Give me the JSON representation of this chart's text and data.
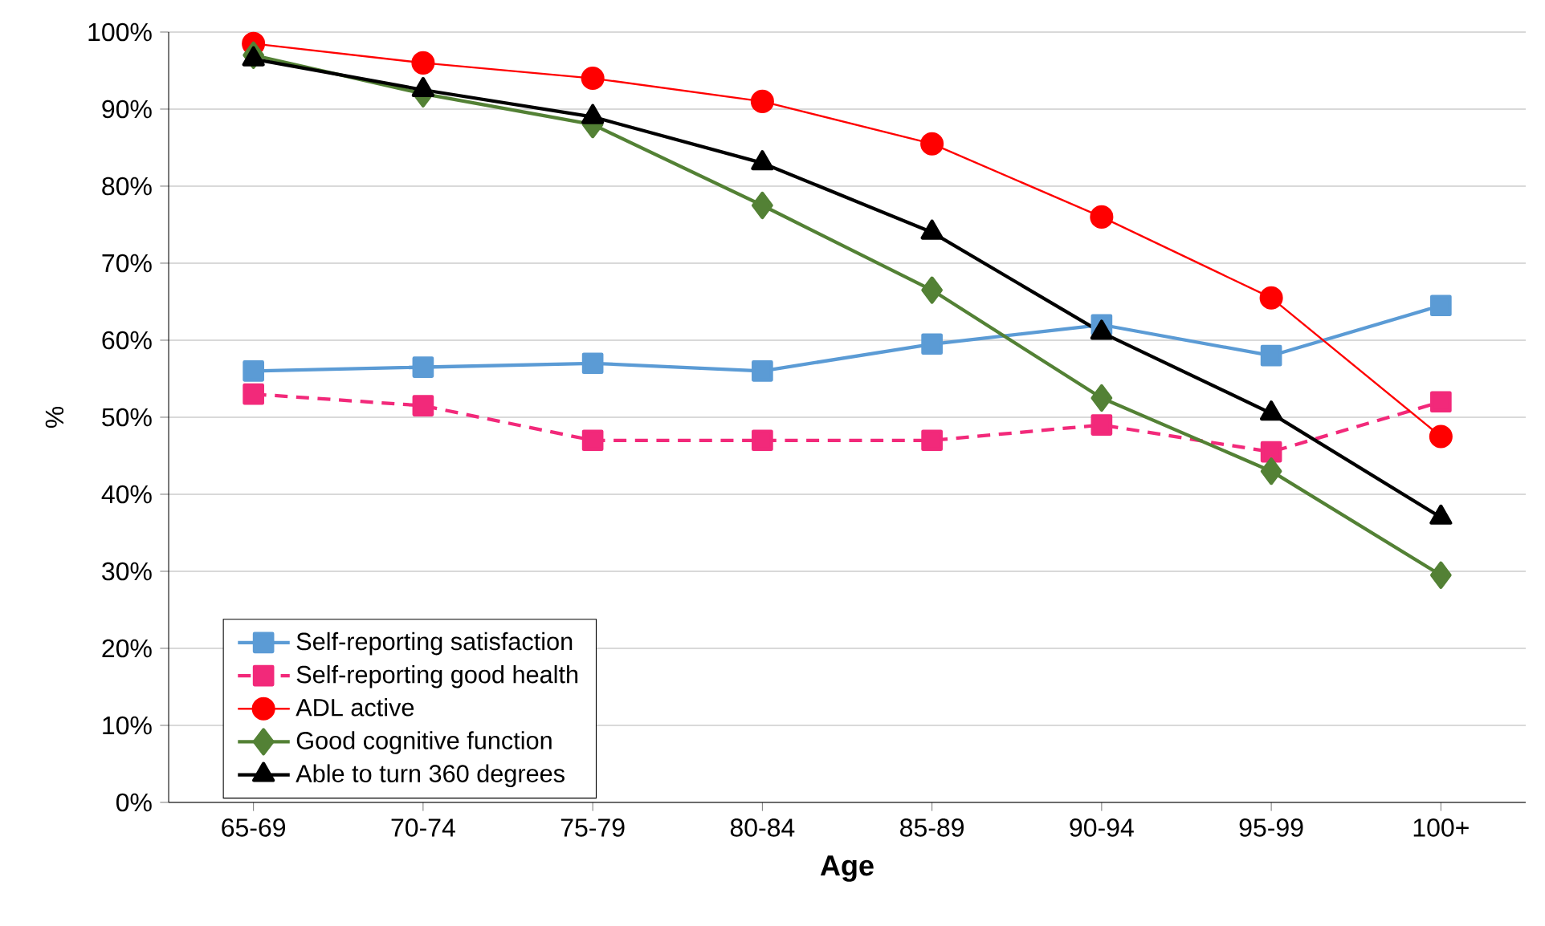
{
  "chart_data": {
    "type": "line",
    "xlabel": "Age",
    "ylabel": "%",
    "categories": [
      "65-69",
      "70-74",
      "75-79",
      "80-84",
      "85-89",
      "90-94",
      "95-99",
      "100+"
    ],
    "series": [
      {
        "name": "Self-reporting satisfaction",
        "color": "#5b9bd5",
        "marker": "square",
        "line_style": "solid",
        "values": [
          56,
          56.5,
          57,
          56,
          59.5,
          62,
          58,
          64.5
        ]
      },
      {
        "name": "Self-reporting good health",
        "color": "#f2297a",
        "marker": "square",
        "line_style": "dashed",
        "values": [
          53,
          51.5,
          47,
          47,
          47,
          49,
          45.5,
          52
        ]
      },
      {
        "name": "ADL active",
        "color": "#ff0000",
        "marker": "circle",
        "line_style": "solid",
        "values": [
          98.5,
          96,
          94,
          91,
          85.5,
          76,
          65.5,
          47.5
        ]
      },
      {
        "name": "Good cognitive function",
        "color": "#538135",
        "marker": "diamond",
        "line_style": "solid",
        "values": [
          97,
          92,
          88,
          77.5,
          66.5,
          52.5,
          43,
          29.5
        ]
      },
      {
        "name": "Able to turn 360 degrees",
        "color": "#000000",
        "marker": "triangle",
        "line_style": "solid",
        "values": [
          96.5,
          92.5,
          89,
          83,
          74,
          61,
          50.5,
          37
        ]
      }
    ],
    "ylim": [
      0,
      100
    ],
    "yticks": [
      {
        "value": 0,
        "label": "0%"
      },
      {
        "value": 10,
        "label": "10%"
      },
      {
        "value": 20,
        "label": "20%"
      },
      {
        "value": 30,
        "label": "30%"
      },
      {
        "value": 40,
        "label": "40%"
      },
      {
        "value": 50,
        "label": "50%"
      },
      {
        "value": 60,
        "label": "60%"
      },
      {
        "value": 70,
        "label": "70%"
      },
      {
        "value": 80,
        "label": "80%"
      },
      {
        "value": 90,
        "label": "90%"
      },
      {
        "value": 100,
        "label": "100%"
      }
    ],
    "grid": "y",
    "legend": "bottom left"
  }
}
